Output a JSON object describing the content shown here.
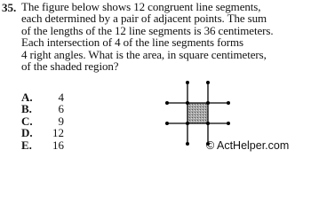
{
  "question": {
    "number": "35.",
    "lines": [
      "The figure below shows 12 congruent line segments,",
      "each determined by a pair of adjacent points. The sum",
      "of the lengths of the 12 line segments is 36 centimeters.",
      "Each intersection of 4 of the line segments forms",
      "4 right angles. What is the area, in square centimeters,",
      "of the shaded region?"
    ],
    "choices": [
      {
        "letter": "A.",
        "text": "4"
      },
      {
        "letter": "B.",
        "text": "6"
      },
      {
        "letter": "C.",
        "text": "9"
      },
      {
        "letter": "D.",
        "text": "12"
      },
      {
        "letter": "E.",
        "text": "16"
      }
    ]
  },
  "watermark": "© ActHelper.com"
}
